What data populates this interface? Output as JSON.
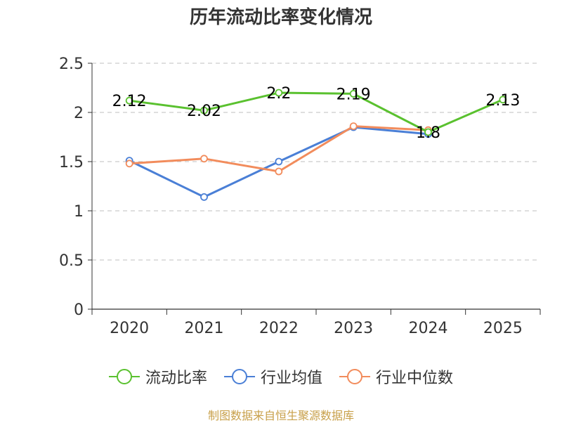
{
  "chart_data": {
    "type": "line",
    "title": "历年流动比率变化情况",
    "categories": [
      "2020",
      "2021",
      "2022",
      "2023",
      "2024",
      "2025"
    ],
    "ylim": [
      0,
      2.5
    ],
    "yticks": [
      "0",
      "0.5",
      "1",
      "1.5",
      "2",
      "2.5"
    ],
    "grid": true,
    "legend_position": "bottom",
    "series": [
      {
        "name": "流动比率",
        "color": "#5ac12f",
        "values": [
          2.12,
          2.02,
          2.2,
          2.19,
          1.8,
          2.13
        ],
        "labels": [
          "2.12",
          "2.02",
          "2.2",
          "2.19",
          "1.8",
          "2.13"
        ]
      },
      {
        "name": "行业均值",
        "color": "#4a7fd6",
        "values": [
          1.51,
          1.14,
          1.5,
          1.85,
          1.78,
          null
        ]
      },
      {
        "name": "行业中位数",
        "color": "#f28c5c",
        "values": [
          1.48,
          1.53,
          1.4,
          1.86,
          1.82,
          null
        ]
      }
    ]
  },
  "source": "制图数据来自恒生聚源数据库"
}
